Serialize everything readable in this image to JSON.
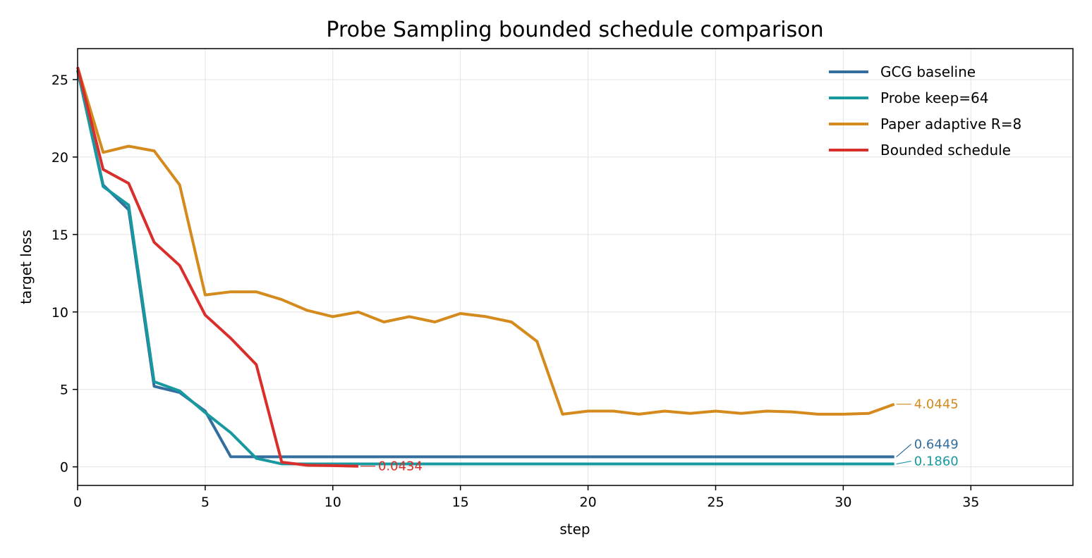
{
  "chart_data": {
    "type": "line",
    "title": "Probe Sampling bounded schedule comparison",
    "xlabel": "step",
    "ylabel": "target loss",
    "xlim": [
      0,
      39
    ],
    "ylim": [
      -1.2,
      27
    ],
    "xticks": [
      0,
      5,
      10,
      15,
      20,
      25,
      30,
      35
    ],
    "yticks": [
      0,
      5,
      10,
      15,
      20,
      25
    ],
    "grid": true,
    "legend_position": "upper-right",
    "series": [
      {
        "name": "GCG baseline",
        "color": "#336e9f",
        "x": [
          0,
          1,
          2,
          3,
          4,
          5,
          6,
          7,
          8,
          9,
          10,
          11,
          12,
          13,
          14,
          15,
          16,
          17,
          18,
          19,
          20,
          21,
          22,
          23,
          24,
          25,
          26,
          27,
          28,
          29,
          30,
          31,
          32
        ],
        "values": [
          25.6,
          18.2,
          16.6,
          5.2,
          4.8,
          3.6,
          0.65,
          0.6449,
          0.6449,
          0.6449,
          0.6449,
          0.6449,
          0.6449,
          0.6449,
          0.6449,
          0.6449,
          0.6449,
          0.6449,
          0.6449,
          0.6449,
          0.6449,
          0.6449,
          0.6449,
          0.6449,
          0.6449,
          0.6449,
          0.6449,
          0.6449,
          0.6449,
          0.6449,
          0.6449,
          0.6449,
          0.6449
        ],
        "end_label": "0.6449"
      },
      {
        "name": "Probe keep=64",
        "color": "#17999f",
        "x": [
          0,
          1,
          2,
          3,
          4,
          5,
          6,
          7,
          8,
          9,
          10,
          11,
          12,
          13,
          14,
          15,
          16,
          17,
          18,
          19,
          20,
          21,
          22,
          23,
          24,
          25,
          26,
          27,
          28,
          29,
          30,
          31,
          32
        ],
        "values": [
          25.6,
          18.1,
          16.9,
          5.5,
          4.9,
          3.5,
          2.2,
          0.55,
          0.19,
          0.186,
          0.186,
          0.186,
          0.186,
          0.186,
          0.186,
          0.186,
          0.186,
          0.186,
          0.186,
          0.186,
          0.186,
          0.186,
          0.186,
          0.186,
          0.186,
          0.186,
          0.186,
          0.186,
          0.186,
          0.186,
          0.186,
          0.186,
          0.186
        ],
        "end_label": "0.1860"
      },
      {
        "name": "Paper adaptive R=8",
        "color": "#d48a1c",
        "x": [
          0,
          1,
          2,
          3,
          4,
          5,
          6,
          7,
          8,
          9,
          10,
          11,
          12,
          13,
          14,
          15,
          16,
          17,
          18,
          19,
          20,
          21,
          22,
          23,
          24,
          25,
          26,
          27,
          28,
          29,
          30,
          31,
          32
        ],
        "values": [
          25.8,
          20.3,
          20.7,
          20.4,
          18.2,
          11.1,
          11.3,
          11.3,
          10.8,
          10.1,
          9.7,
          10.0,
          9.35,
          9.7,
          9.35,
          9.9,
          9.7,
          9.35,
          8.1,
          3.4,
          3.6,
          3.6,
          3.4,
          3.6,
          3.45,
          3.6,
          3.45,
          3.6,
          3.55,
          3.4,
          3.4,
          3.45,
          4.0445
        ],
        "end_label": "4.0445"
      },
      {
        "name": "Bounded schedule",
        "color": "#d92e2b",
        "x": [
          0,
          1,
          2,
          3,
          4,
          5,
          6,
          7,
          8,
          9,
          10,
          11
        ],
        "values": [
          25.8,
          19.2,
          18.3,
          14.5,
          13.0,
          9.8,
          8.3,
          6.6,
          0.3,
          0.1,
          0.08,
          0.0434
        ],
        "end_label": "0.0434"
      }
    ]
  }
}
